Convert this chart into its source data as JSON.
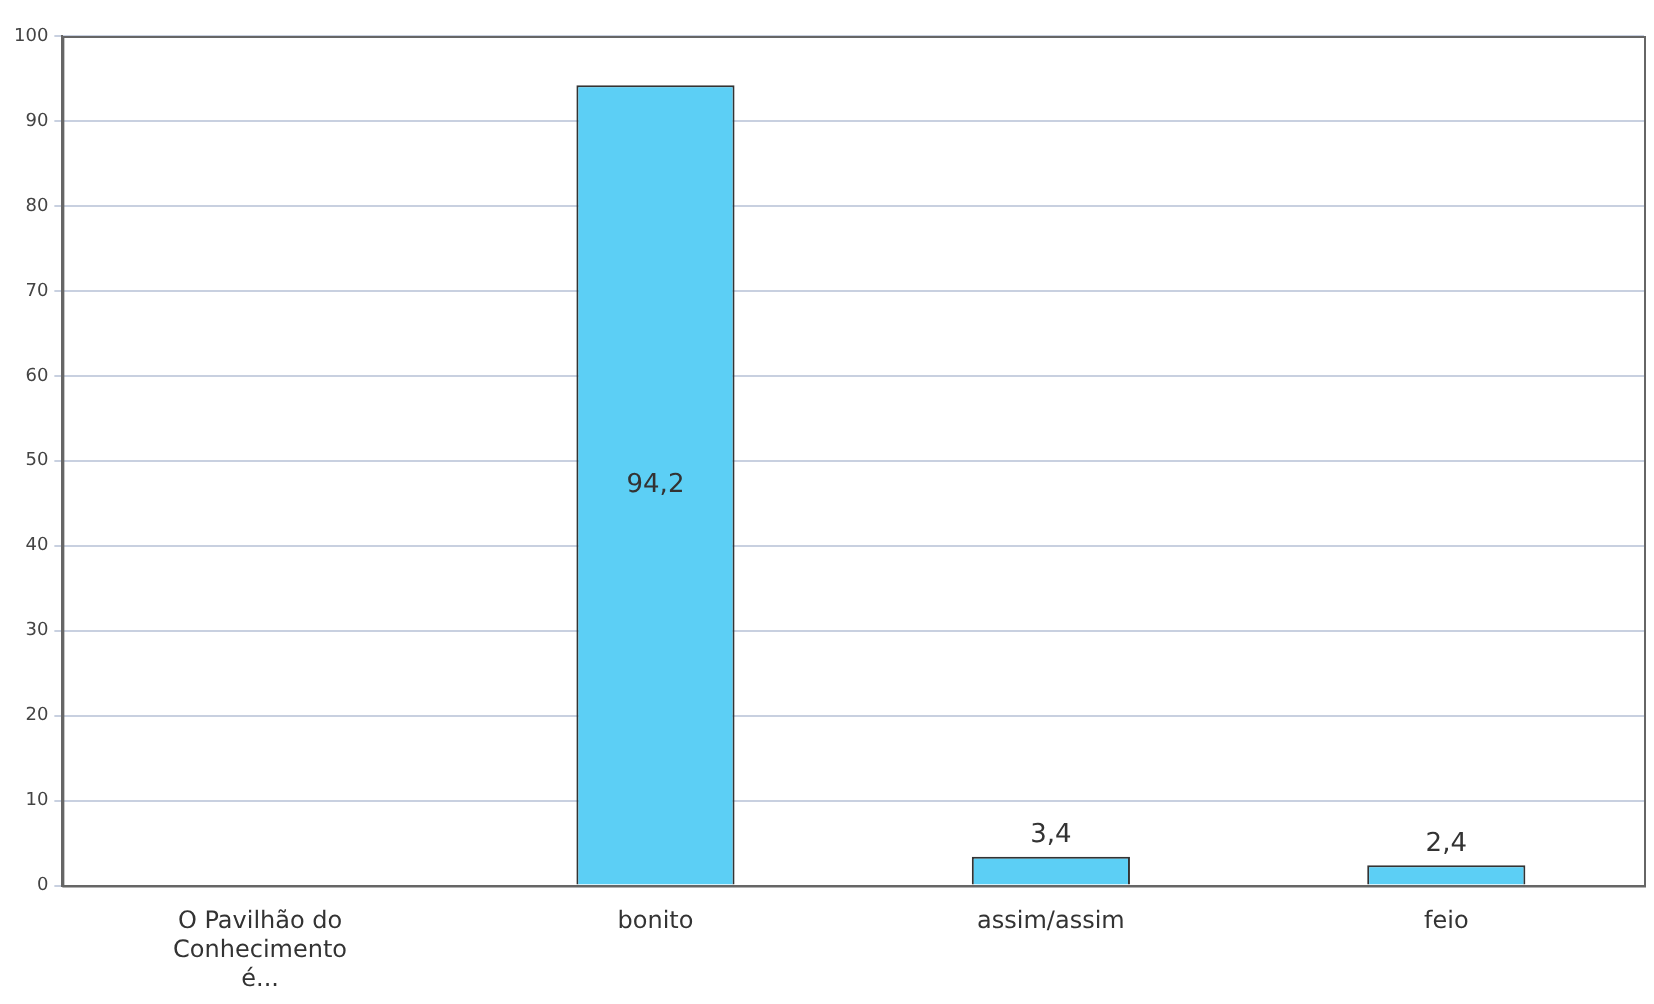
{
  "chart_data": {
    "type": "bar",
    "categories": [
      "O Pavilhão do Conhecimento é...",
      "bonito",
      "assim/assim",
      "feio"
    ],
    "values": [
      null,
      94.2,
      3.4,
      2.4
    ],
    "value_labels": [
      null,
      "94,2",
      "3,4",
      "2,4"
    ],
    "color": "#5ccff5",
    "ylim": [
      0,
      100
    ],
    "yticks": [
      0,
      10,
      20,
      30,
      40,
      50,
      60,
      70,
      80,
      90,
      100
    ],
    "grid": "y",
    "legend": false
  }
}
